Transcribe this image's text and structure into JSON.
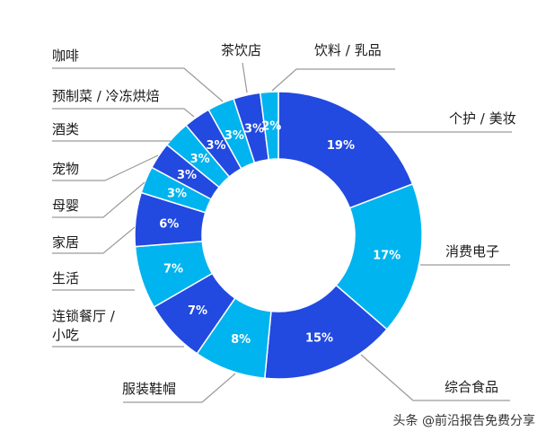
{
  "chart_data": {
    "type": "pie",
    "subtype": "donut",
    "title": "",
    "start_angle_deg": 0,
    "direction": "clockwise",
    "colors": {
      "dark": "#2249E0",
      "light": "#00B4EF"
    },
    "slices": [
      {
        "label": "个护 / 美妆",
        "value": 19,
        "display": "19%",
        "color": "#2249E0"
      },
      {
        "label": "消费电子",
        "value": 17,
        "display": "17%",
        "color": "#00B4EF"
      },
      {
        "label": "综合食品",
        "value": 15,
        "display": "15%",
        "color": "#2249E0"
      },
      {
        "label": "服装鞋帽",
        "value": 8,
        "display": "8%",
        "color": "#00B4EF"
      },
      {
        "label": "连锁餐厅 / 小吃",
        "value": 7,
        "display": "7%",
        "color": "#2249E0"
      },
      {
        "label": "生活",
        "value": 7,
        "display": "7%",
        "color": "#00B4EF"
      },
      {
        "label": "家居",
        "value": 6,
        "display": "6%",
        "color": "#2249E0"
      },
      {
        "label": "母婴",
        "value": 3,
        "display": "3%",
        "color": "#00B4EF"
      },
      {
        "label": "宠物",
        "value": 3,
        "display": "3%",
        "color": "#2249E0"
      },
      {
        "label": "酒类",
        "value": 3,
        "display": "3%",
        "color": "#00B4EF"
      },
      {
        "label": "预制菜 / 冷冻烘焙",
        "value": 3,
        "display": "3%",
        "color": "#2249E0"
      },
      {
        "label": "咖啡",
        "value": 3,
        "display": "3%",
        "color": "#00B4EF"
      },
      {
        "label": "茶饮店",
        "value": 3,
        "display": "3%",
        "color": "#2249E0"
      },
      {
        "label": "饮料 / 乳品",
        "value": 2,
        "display": "2%",
        "color": "#00B4EF"
      }
    ],
    "legend": "none (leader-line labels)"
  },
  "labels": {
    "personal_care": "个护 / 美妆",
    "electronics": "消费电子",
    "food": "综合食品",
    "apparel": "服装鞋帽",
    "restaurant_1": "连锁餐厅 /",
    "restaurant_2": "小吃",
    "living": "生活",
    "home": "家居",
    "baby": "母婴",
    "pet": "宠物",
    "liquor": "酒类",
    "prepared": "预制菜 / 冷冻烘焙",
    "coffee": "咖啡",
    "tea": "茶饮店",
    "beverage": "饮料 / 乳品"
  },
  "watermark": "头条 @前沿报告免费分享"
}
